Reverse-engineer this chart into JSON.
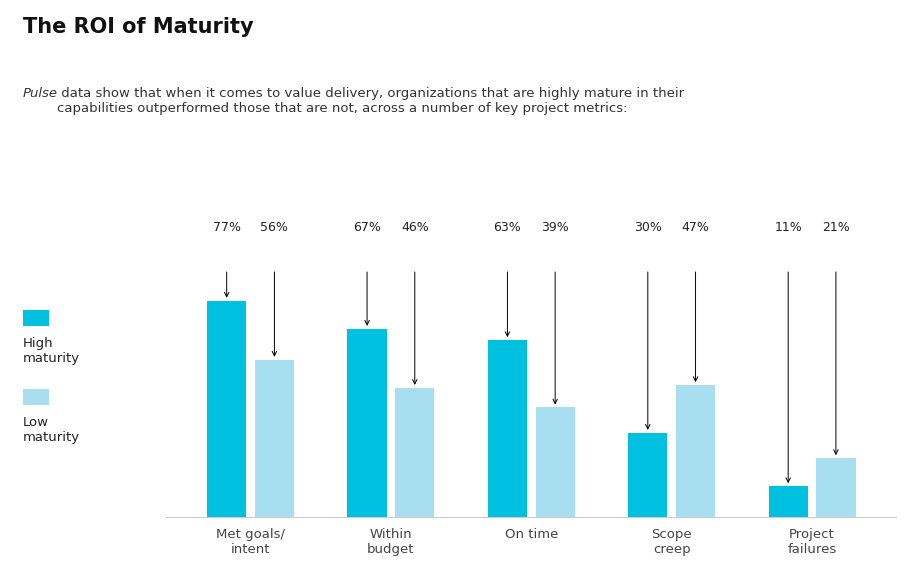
{
  "title": "The ROI of Maturity",
  "subtitle_italic": "Pulse",
  "subtitle_rest": " data show that when it comes to value delivery, organizations that are highly mature in their\ncapabilities outperformed those that are not, across a number of key project metrics:",
  "categories": [
    "Met goals/\nintent",
    "Within\nbudget",
    "On time",
    "Scope\ncreep",
    "Project\nfailures"
  ],
  "high_maturity": [
    77,
    67,
    63,
    30,
    11
  ],
  "low_maturity": [
    56,
    46,
    39,
    47,
    21
  ],
  "high_color": "#00C0E0",
  "low_color": "#A8DFF0",
  "background_color": "#FFFFFF",
  "legend_high": "High\nmaturity",
  "legend_low": "Low\nmaturity",
  "bar_width": 0.28
}
